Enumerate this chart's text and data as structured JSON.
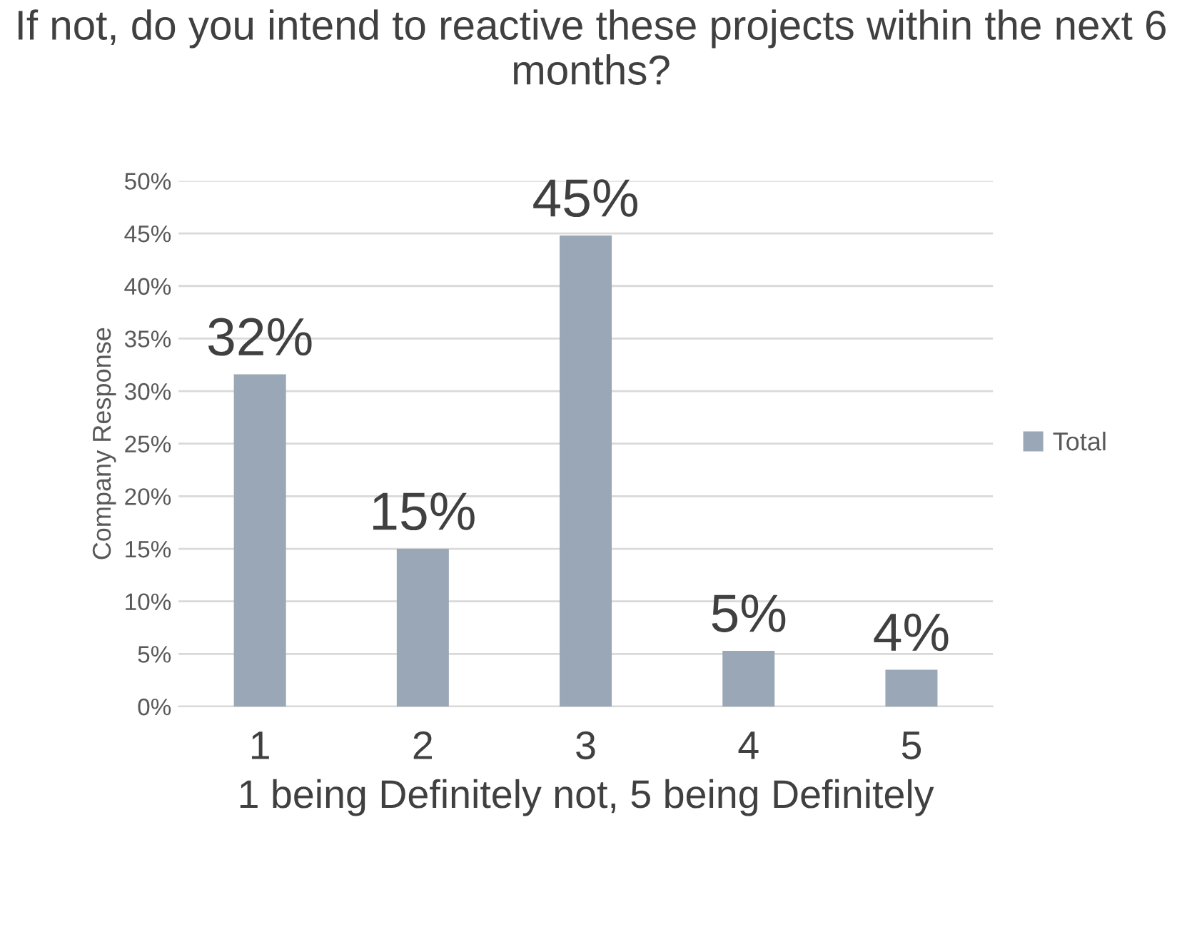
{
  "chart_data": {
    "type": "bar",
    "title": "If not, do you intend to reactive these projects within the next 6 months?",
    "xlabel": "1 being Definitely not, 5 being Definitely",
    "ylabel": "Company Response",
    "categories": [
      "1",
      "2",
      "3",
      "4",
      "5"
    ],
    "series": [
      {
        "name": "Total",
        "color": "#9aa7b6",
        "values": [
          31.6,
          15,
          44.8,
          5.3,
          3.5
        ]
      }
    ],
    "value_labels": [
      "32%",
      "15%",
      "45%",
      "5%",
      "4%"
    ],
    "ylim": [
      0,
      50
    ],
    "yticks": [
      {
        "value": 0,
        "label": "0%"
      },
      {
        "value": 5,
        "label": "5%"
      },
      {
        "value": 10,
        "label": "10%"
      },
      {
        "value": 15,
        "label": "15%"
      },
      {
        "value": 20,
        "label": "20%"
      },
      {
        "value": 25,
        "label": "25%"
      },
      {
        "value": 30,
        "label": "30%"
      },
      {
        "value": 35,
        "label": "35%"
      },
      {
        "value": 40,
        "label": "40%"
      },
      {
        "value": 45,
        "label": "45%"
      },
      {
        "value": 50,
        "label": "50%"
      }
    ],
    "grid": "y",
    "legend": "right"
  }
}
